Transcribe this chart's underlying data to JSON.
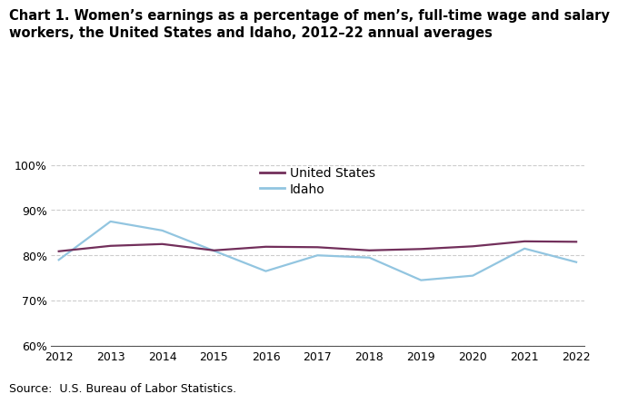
{
  "years": [
    2012,
    2013,
    2014,
    2015,
    2016,
    2017,
    2018,
    2019,
    2020,
    2021,
    2022
  ],
  "us_values": [
    80.9,
    82.1,
    82.5,
    81.1,
    81.9,
    81.8,
    81.1,
    81.4,
    82.0,
    83.1,
    83.0
  ],
  "idaho_values": [
    79.0,
    87.5,
    85.5,
    81.0,
    76.5,
    80.0,
    79.5,
    74.5,
    75.5,
    81.5,
    78.5
  ],
  "us_color": "#722F5B",
  "idaho_color": "#92C5E0",
  "us_label": "United States",
  "idaho_label": "Idaho",
  "title_line1": "Chart 1. Women’s earnings as a percentage of men’s, full-time wage and salary",
  "title_line2": "workers, the United States and Idaho, 2012–22 annual averages",
  "source": "Source:  U.S. Bureau of Labor Statistics.",
  "ylim": [
    60,
    101
  ],
  "yticks": [
    60,
    70,
    80,
    90,
    100
  ],
  "ytick_labels": [
    "60%",
    "70%",
    "80%",
    "90%",
    "100%"
  ],
  "background_color": "#ffffff",
  "grid_color": "#cccccc",
  "line_width": 1.6,
  "title_fontsize": 10.5,
  "tick_fontsize": 9,
  "legend_fontsize": 10,
  "source_fontsize": 9
}
